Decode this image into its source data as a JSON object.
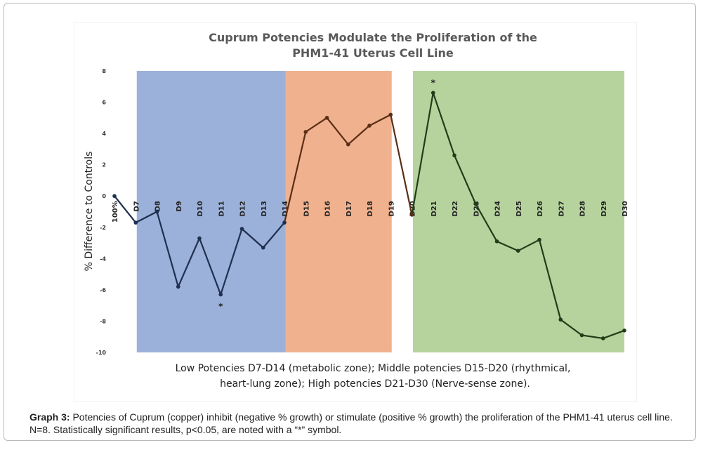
{
  "chart_data": {
    "type": "line",
    "title_line1": "Cuprum Potencies Modulate the Proliferation of the",
    "title_line2": "PHM1-41 Uterus Cell Line",
    "ylabel": "% Difference to Controls",
    "xlabel_line1": "Low Potencies D7-D14 (metabolic zone); Middle potencies D15-D20 (rhythmical,",
    "xlabel_line2": "heart-lung zone); High potencies D21-D30 (Nerve-sense zone).",
    "ylim": [
      -10,
      8
    ],
    "yticks": [
      "8",
      "6",
      "4",
      "2",
      "0",
      "-2",
      "-4",
      "-6",
      "-8",
      "-10"
    ],
    "categories": [
      "100%",
      "D7",
      "D8",
      "D9",
      "D10",
      "D11",
      "D12",
      "D13",
      "D14",
      "D15",
      "D16",
      "D17",
      "D18",
      "D19",
      "D20",
      "D21",
      "D22",
      "D23",
      "D24",
      "D25",
      "D26",
      "D27",
      "D28",
      "D29",
      "D30"
    ],
    "series": [
      {
        "values": [
          0,
          -1.7,
          -1.0,
          -5.8,
          -2.7,
          -6.3,
          -2.1,
          -3.3,
          -1.7,
          4.1,
          5.0,
          3.3,
          4.5,
          5.2,
          -1.2,
          6.6,
          2.6,
          -0.5,
          -2.9,
          -3.5,
          -2.8,
          -7.9,
          -8.9,
          -9.1,
          -8.6
        ]
      }
    ],
    "significant_marker": "*",
    "significant_indices": [
      5,
      15
    ],
    "zones": [
      {
        "from": "D8",
        "to": "D14",
        "color": "#9bb1d9"
      },
      {
        "from": "D15",
        "to": "D19",
        "color": "#f0b18e"
      },
      {
        "from": "D21",
        "to": "D30",
        "color": "#b6d39d"
      }
    ],
    "line_colors": [
      "#1f2f4f",
      "#5a2e14",
      "#213d18"
    ]
  },
  "caption": {
    "label": "Graph 3:",
    "text": " Potencies of Cuprum (copper) inhibit (negative % growth) or stimulate (positive % growth) the proliferation of the PHM1-41 uterus cell line. N=8. Statistically significant results, p<0.05, are noted with a “*” symbol."
  }
}
